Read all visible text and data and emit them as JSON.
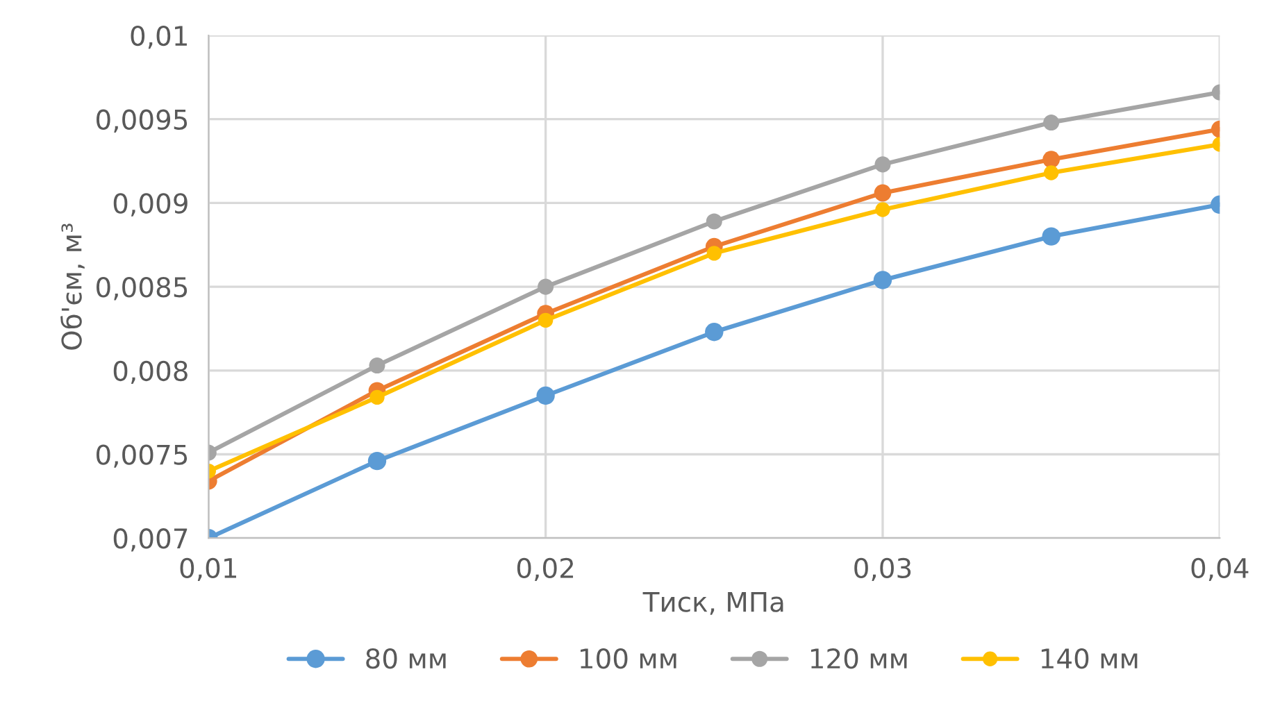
{
  "chart_data": {
    "type": "line",
    "xlabel": "Тиск, МПа",
    "ylabel": "Об'єм, м³",
    "x": [
      0.01,
      0.015,
      0.02,
      0.025,
      0.03,
      0.035,
      0.04
    ],
    "series": [
      {
        "name": "80 мм",
        "color": "#5b9bd5",
        "values": [
          0.007,
          0.00746,
          0.00785,
          0.00823,
          0.00854,
          0.0088,
          0.00899
        ]
      },
      {
        "name": "100 мм",
        "color": "#ed7d31",
        "values": [
          0.00734,
          0.00788,
          0.00834,
          0.00874,
          0.00906,
          0.00926,
          0.00944
        ]
      },
      {
        "name": "120 мм",
        "color": "#a5a5a5",
        "values": [
          0.00751,
          0.00803,
          0.0085,
          0.00889,
          0.00923,
          0.00948,
          0.00966
        ]
      },
      {
        "name": "140 мм",
        "color": "#ffc000",
        "values": [
          0.0074,
          0.00784,
          0.0083,
          0.0087,
          0.00896,
          0.00918,
          0.00935
        ]
      }
    ],
    "xlim": [
      0.01,
      0.04
    ],
    "xticks": [
      {
        "value": 0.01,
        "label": "0,01"
      },
      {
        "value": 0.02,
        "label": "0,02"
      },
      {
        "value": 0.03,
        "label": "0,03"
      },
      {
        "value": 0.04,
        "label": "0,04"
      }
    ],
    "ylim": [
      0.007,
      0.01
    ],
    "yticks": [
      {
        "value": 0.007,
        "label": "0,007"
      },
      {
        "value": 0.0075,
        "label": "0,0075"
      },
      {
        "value": 0.008,
        "label": "0,008"
      },
      {
        "value": 0.0085,
        "label": "0,0085"
      },
      {
        "value": 0.009,
        "label": "0,009"
      },
      {
        "value": 0.0095,
        "label": "0,0095"
      },
      {
        "value": 0.01,
        "label": "0,01"
      }
    ],
    "grid": true,
    "legend": "bottom",
    "marker": "circle",
    "line_style": "solid"
  }
}
